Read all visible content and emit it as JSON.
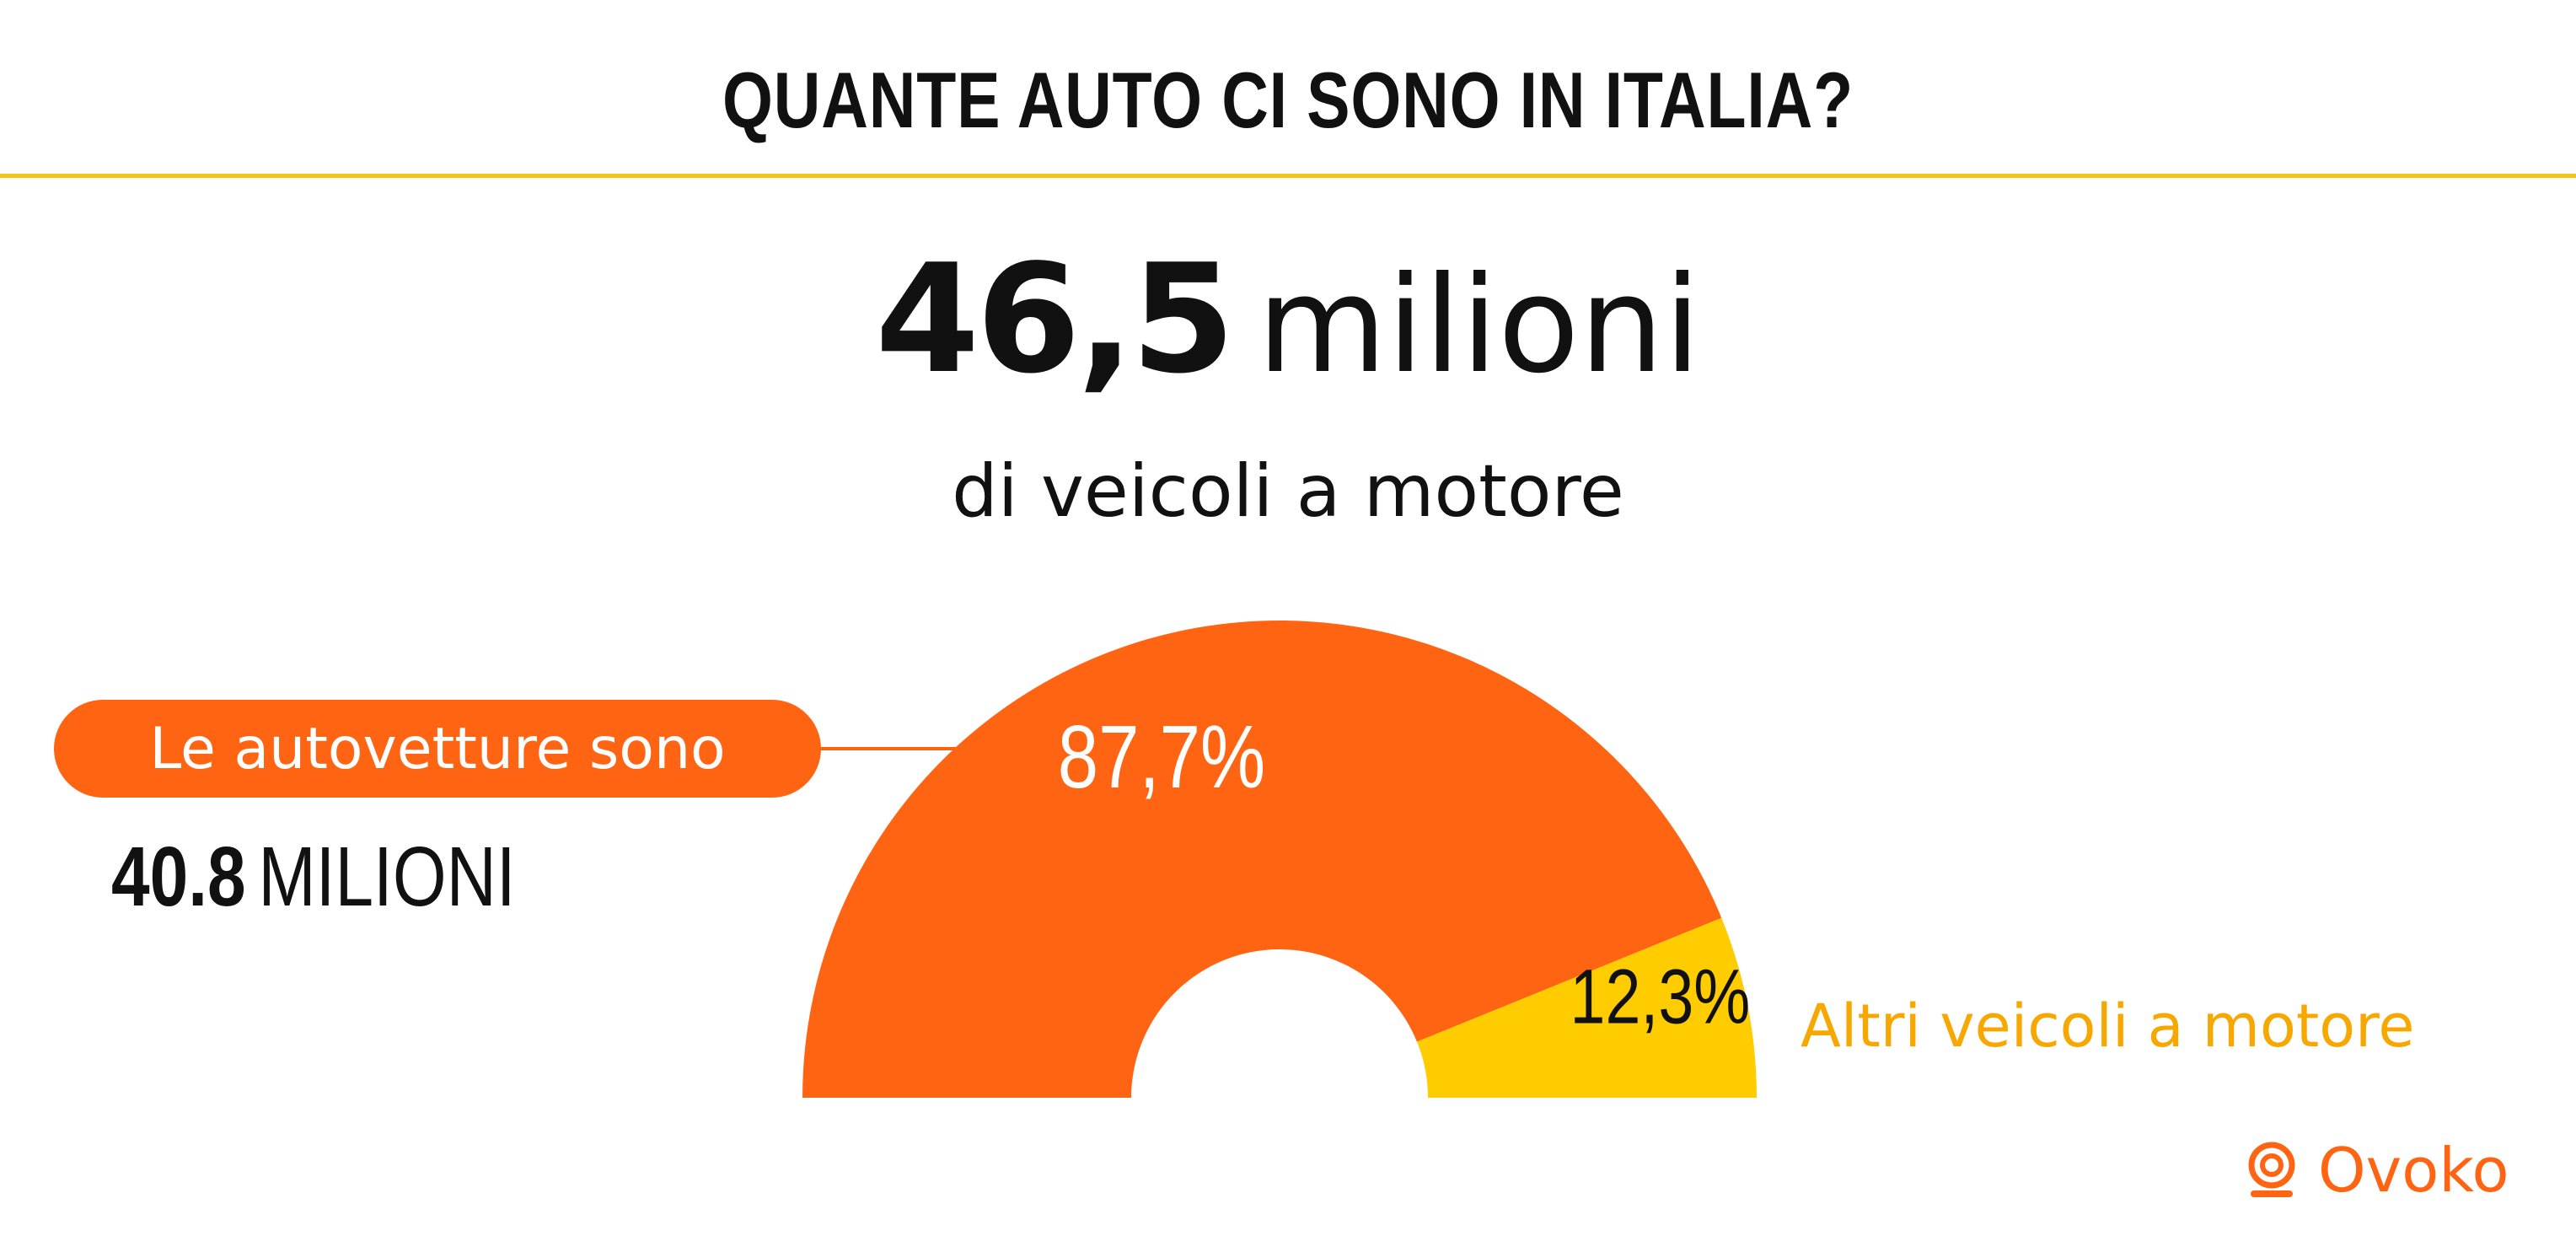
{
  "title": "QUANTE AUTO CI SONO IN ITALIA?",
  "headline": {
    "number": "46,5",
    "unit": "milioni",
    "subtitle": "di veicoli a motore"
  },
  "callout_left": {
    "label": "Le autovetture sono",
    "value": "40.8",
    "unit": "MILIONI"
  },
  "callout_right": {
    "label": "Altri veicoli a motore"
  },
  "brand": {
    "name": "Ovoko",
    "icon": "ovoko-logo-icon"
  },
  "colors": {
    "primary": "#ff6412",
    "secondary": "#ffcc00",
    "rule": "#f7c21a",
    "text": "#111111"
  },
  "chart_data": {
    "type": "pie",
    "variant": "semicircle-donut",
    "categories": [
      "Le autovetture",
      "Altri veicoli a motore"
    ],
    "values": [
      87.7,
      12.3
    ],
    "value_labels": [
      "87,7%",
      "12,3%"
    ],
    "unit": "%"
  }
}
